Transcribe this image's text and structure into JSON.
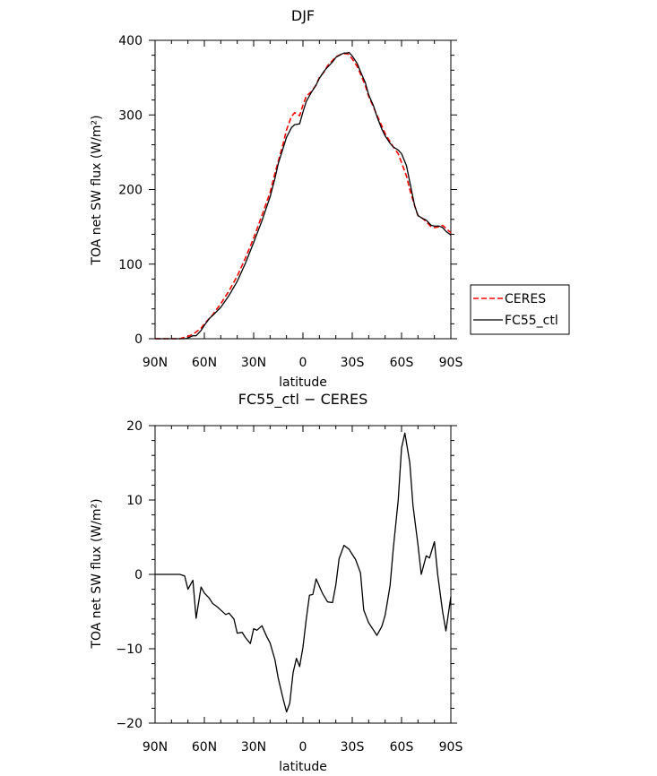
{
  "chart_data": [
    {
      "type": "line",
      "title": "DJF",
      "xlabel": "latitude",
      "ylabel": "TOA net SW flux (W/m²)",
      "ylim": [
        0,
        400
      ],
      "xlim": [
        -90,
        90
      ],
      "x_tick_values": [
        -90,
        -60,
        -30,
        0,
        30,
        60,
        90
      ],
      "x_tick_labels": [
        "90N",
        "60N",
        "30N",
        "0",
        "30S",
        "60S",
        "90S"
      ],
      "y_tick_values": [
        0,
        100,
        200,
        300,
        400
      ],
      "y_tick_labels": [
        "0",
        "100",
        "200",
        "300",
        "400"
      ],
      "grid": false,
      "legend_position": "right",
      "series": [
        {
          "name": "CERES",
          "color": "#ff0000",
          "dash": "dashed",
          "x": [
            -90,
            -85,
            -80,
            -75,
            -72,
            -70,
            -67,
            -65,
            -62,
            -60,
            -57,
            -55,
            -50,
            -45,
            -40,
            -35,
            -30,
            -25,
            -20,
            -17,
            -15,
            -12,
            -10,
            -7,
            -5,
            -2,
            0,
            2,
            5,
            8,
            10,
            13,
            15,
            18,
            20,
            23,
            25,
            27,
            28,
            30,
            33,
            35,
            38,
            40,
            43,
            45,
            48,
            50,
            53,
            55,
            58,
            60,
            63,
            65,
            68,
            70,
            73,
            75,
            78,
            80,
            83,
            85,
            87,
            90
          ],
          "values": [
            0,
            0,
            0,
            0,
            2,
            3,
            6,
            9,
            14,
            20,
            27,
            32,
            47,
            64,
            84,
            108,
            135,
            165,
            196,
            222,
            238,
            262,
            280,
            298,
            303,
            299,
            313,
            325,
            331,
            340,
            350,
            358,
            366,
            373,
            378,
            381,
            382,
            382,
            381,
            375,
            365,
            355,
            339,
            325,
            310,
            300,
            285,
            275,
            264,
            257,
            248,
            236,
            218,
            200,
            178,
            165,
            161,
            157,
            150,
            149,
            150,
            152,
            148,
            142
          ]
        },
        {
          "name": "FC55_ctl",
          "color": "#000000",
          "dash": "solid",
          "x": [
            -90,
            -85,
            -80,
            -75,
            -72,
            -70,
            -67,
            -65,
            -62,
            -60,
            -57,
            -55,
            -50,
            -45,
            -40,
            -35,
            -30,
            -25,
            -20,
            -17,
            -15,
            -12,
            -10,
            -7,
            -5,
            -2,
            0,
            2,
            5,
            8,
            10,
            13,
            15,
            18,
            20,
            23,
            25,
            27,
            28,
            30,
            33,
            35,
            38,
            40,
            43,
            45,
            48,
            50,
            53,
            55,
            58,
            60,
            63,
            65,
            68,
            70,
            73,
            75,
            78,
            80,
            83,
            85,
            87,
            90
          ],
          "values": [
            0,
            0,
            0,
            0,
            0,
            1,
            4,
            4,
            11,
            18,
            27,
            31,
            42,
            58,
            77,
            101,
            129,
            158,
            190,
            215,
            235,
            256,
            270,
            283,
            287,
            288,
            304,
            318,
            330,
            340,
            349,
            359,
            364,
            371,
            377,
            381,
            383,
            383,
            384,
            379,
            369,
            358,
            343,
            327,
            312,
            298,
            281,
            272,
            262,
            257,
            253,
            248,
            232,
            210,
            178,
            165,
            161,
            159,
            152,
            151,
            151,
            149,
            144,
            139
          ]
        }
      ]
    },
    {
      "type": "line",
      "title": "FC55_ctl − CERES",
      "xlabel": "latitude",
      "ylabel": "TOA net SW flux (W/m²)",
      "ylim": [
        -20,
        20
      ],
      "xlim": [
        -90,
        90
      ],
      "x_tick_values": [
        -90,
        -60,
        -30,
        0,
        30,
        60,
        90
      ],
      "x_tick_labels": [
        "90N",
        "60N",
        "30N",
        "0",
        "30S",
        "60S",
        "90S"
      ],
      "y_tick_values": [
        -20,
        -10,
        0,
        10,
        20
      ],
      "y_tick_labels": [
        "−20",
        "−10",
        "0",
        "10",
        "20"
      ],
      "grid": false,
      "series": [
        {
          "color": "#000000",
          "dash": "solid",
          "x": [
            -90,
            -85,
            -80,
            -75,
            -72,
            -70,
            -67,
            -65,
            -62,
            -60,
            -57,
            -55,
            -52,
            -50,
            -47,
            -45,
            -42,
            -40,
            -37,
            -35,
            -32,
            -30,
            -28,
            -25,
            -22,
            -20,
            -17,
            -15,
            -12,
            -10,
            -8,
            -6,
            -4,
            -2,
            0,
            2,
            4,
            6,
            8,
            10,
            12,
            15,
            18,
            20,
            22,
            25,
            28,
            30,
            32,
            35,
            37,
            40,
            43,
            45,
            48,
            50,
            53,
            55,
            58,
            60,
            62,
            65,
            67,
            70,
            72,
            75,
            77,
            80,
            82,
            85,
            87,
            90
          ],
          "values": [
            0,
            0,
            0,
            0,
            -0.2,
            -2.0,
            -0.8,
            -5.9,
            -1.7,
            -2.5,
            -3.2,
            -3.9,
            -4.4,
            -4.8,
            -5.4,
            -5.2,
            -6.0,
            -7.9,
            -7.8,
            -8.5,
            -9.3,
            -7.3,
            -7.5,
            -6.9,
            -8.4,
            -9.2,
            -11.5,
            -14.0,
            -16.8,
            -18.5,
            -17.3,
            -13.2,
            -11.3,
            -12.4,
            -9.8,
            -6.0,
            -2.8,
            -2.7,
            -0.6,
            -1.6,
            -2.6,
            -3.7,
            -3.8,
            -1.4,
            2.1,
            3.9,
            3.4,
            2.7,
            2.0,
            0.2,
            -4.8,
            -6.5,
            -7.5,
            -8.2,
            -7.0,
            -5.5,
            -1.5,
            3.5,
            10.0,
            17.0,
            19.0,
            15.0,
            9.2,
            4.0,
            0.0,
            2.5,
            2.2,
            4.4,
            0.0,
            -5.0,
            -7.6,
            -3.0
          ]
        }
      ]
    }
  ]
}
